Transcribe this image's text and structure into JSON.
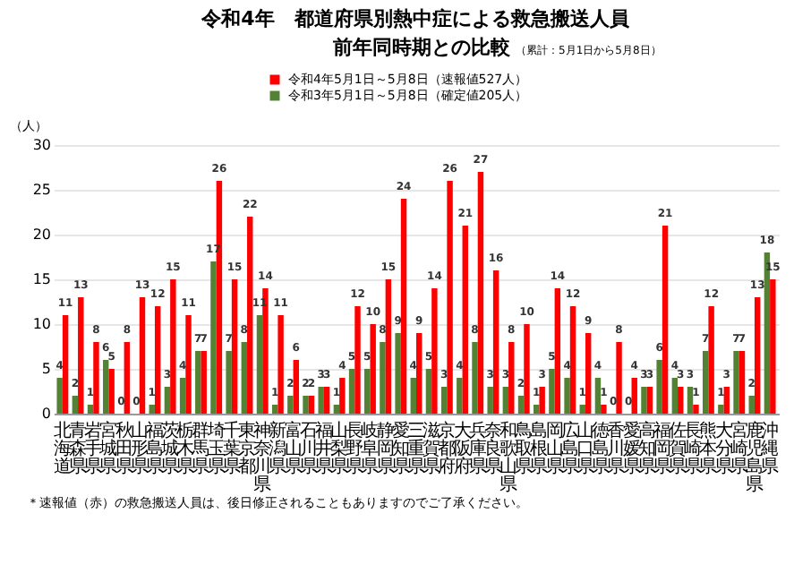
{
  "chart_data": {
    "type": "bar",
    "title": "令和4年　都道府県別熱中症による救急搬送人員",
    "subtitle": "前年同時期との比較",
    "ylabel": "（人）",
    "categories": [
      "北海道",
      "青森県",
      "岩手県",
      "宮城県",
      "秋田県",
      "山形県",
      "福島県",
      "茨城県",
      "栃木県",
      "群馬県",
      "埼玉県",
      "千葉県",
      "東京都",
      "神奈川県",
      "新潟県",
      "富山県",
      "石川県",
      "福井県",
      "山梨県",
      "長野県",
      "岐阜県",
      "静岡県",
      "愛知県",
      "三重県",
      "滋賀県",
      "京都府",
      "大阪府",
      "兵庫県",
      "奈良県",
      "和歌山県",
      "鳥取県",
      "島根県",
      "岡山県",
      "広島県",
      "山口県",
      "徳島県",
      "香川県",
      "愛媛県",
      "高知県",
      "福岡県",
      "佐賀県",
      "長崎県",
      "熊本県",
      "大分県",
      "宮崎県",
      "鹿児島県",
      "沖縄県"
    ],
    "series": [
      {
        "name": "令和3年5月1日～5月8日（確定値205人）",
        "color": "#548235",
        "values": [
          4,
          2,
          1,
          6,
          0,
          0,
          1,
          3,
          4,
          7,
          17,
          7,
          8,
          11,
          1,
          2,
          2,
          3,
          1,
          5,
          5,
          8,
          9,
          4,
          5,
          3,
          4,
          8,
          3,
          3,
          2,
          1,
          5,
          4,
          1,
          4,
          0,
          0,
          3,
          6,
          4,
          3,
          7,
          1,
          7,
          2,
          18
        ]
      },
      {
        "name": "令和4年5月1日～5月8日（速報値527人）",
        "color": "#ff0000",
        "values": [
          11,
          13,
          8,
          5,
          8,
          13,
          12,
          15,
          11,
          7,
          26,
          15,
          22,
          14,
          11,
          6,
          2,
          3,
          4,
          12,
          10,
          15,
          24,
          9,
          14,
          26,
          21,
          27,
          16,
          8,
          10,
          3,
          14,
          12,
          9,
          1,
          8,
          4,
          3,
          21,
          3,
          1,
          12,
          3,
          7,
          13,
          15
        ]
      }
    ],
    "ylim": [
      0,
      30
    ],
    "yticks": [
      0,
      5,
      10,
      15,
      20,
      25,
      30
    ],
    "grid": "y",
    "legend": "top",
    "data_labels": true,
    "annotations": [
      "（累計：5月1日から5月8日）",
      "＊速報値（赤）の救急搬送人員は、後日修正されることもありますのでご了承ください。"
    ]
  }
}
